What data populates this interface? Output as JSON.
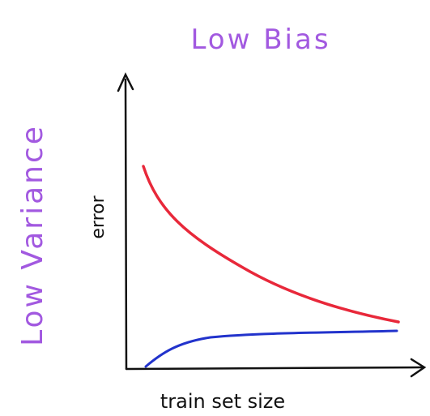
{
  "title": "Low Bias",
  "side_label": "Low Variance",
  "y_axis_label": "error",
  "x_axis_label": "train set size"
}
